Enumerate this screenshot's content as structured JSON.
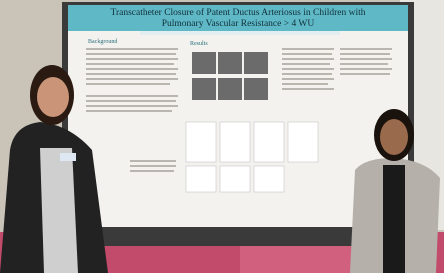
{
  "poster": {
    "title_lines": [
      "Transcatheter Closure of Patent Ductus Arteriosus in Children with",
      "Pulmonary Vascular Resistance > 4 WU"
    ],
    "sections": [
      "Background",
      "Results"
    ]
  }
}
